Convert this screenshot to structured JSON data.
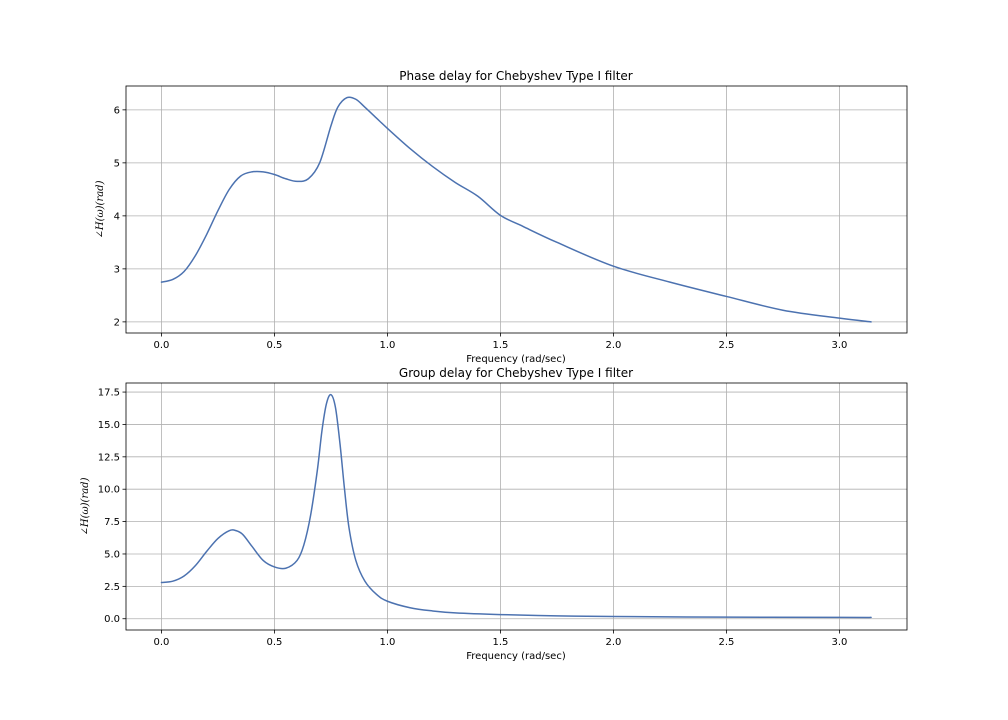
{
  "chart_data": [
    {
      "type": "line",
      "title": "Phase delay for Chebyshev Type I filter",
      "xlabel": "Frequency (rad/sec)",
      "ylabel": "∠H(ω)(rad)",
      "xlim": [
        -0.157,
        3.299
      ],
      "ylim": [
        1.79,
        6.45
      ],
      "xticks": [
        0.0,
        0.5,
        1.0,
        1.5,
        2.0,
        2.5,
        3.0
      ],
      "xtick_labels": [
        "0.0",
        "0.5",
        "1.0",
        "1.5",
        "2.0",
        "2.5",
        "3.0"
      ],
      "yticks": [
        2,
        3,
        4,
        5,
        6
      ],
      "ytick_labels": [
        "2",
        "3",
        "4",
        "5",
        "6"
      ],
      "grid": true,
      "series": [
        {
          "color": "#4c72b0",
          "x": [
            0.0,
            0.05,
            0.1,
            0.15,
            0.2,
            0.25,
            0.3,
            0.35,
            0.4,
            0.45,
            0.5,
            0.55,
            0.6,
            0.65,
            0.7,
            0.75,
            0.78,
            0.82,
            0.86,
            0.9,
            0.95,
            1.0,
            1.1,
            1.2,
            1.3,
            1.4,
            1.5,
            1.6,
            1.75,
            2.0,
            2.25,
            2.5,
            2.75,
            3.0,
            3.14
          ],
          "y": [
            2.75,
            2.8,
            2.95,
            3.25,
            3.65,
            4.1,
            4.5,
            4.75,
            4.83,
            4.83,
            4.78,
            4.7,
            4.65,
            4.7,
            5.0,
            5.7,
            6.05,
            6.23,
            6.2,
            6.05,
            5.85,
            5.65,
            5.27,
            4.93,
            4.63,
            4.37,
            4.01,
            3.8,
            3.5,
            3.05,
            2.75,
            2.48,
            2.22,
            2.07,
            2.0
          ]
        }
      ]
    },
    {
      "type": "line",
      "title": "Group delay for Chebyshev Type I filter",
      "xlabel": "Frequency (rad/sec)",
      "ylabel": "∠H(ω)(rad)",
      "xlim": [
        -0.157,
        3.299
      ],
      "ylim": [
        -0.87,
        18.2
      ],
      "xticks": [
        0.0,
        0.5,
        1.0,
        1.5,
        2.0,
        2.5,
        3.0
      ],
      "xtick_labels": [
        "0.0",
        "0.5",
        "1.0",
        "1.5",
        "2.0",
        "2.5",
        "3.0"
      ],
      "yticks": [
        0.0,
        2.5,
        5.0,
        7.5,
        10.0,
        12.5,
        15.0,
        17.5
      ],
      "ytick_labels": [
        "0.0",
        "2.5",
        "5.0",
        "7.5",
        "10.0",
        "12.5",
        "15.0",
        "17.5"
      ],
      "grid": true,
      "series": [
        {
          "color": "#4c72b0",
          "x": [
            0.0,
            0.05,
            0.1,
            0.15,
            0.2,
            0.25,
            0.3,
            0.33,
            0.36,
            0.4,
            0.45,
            0.5,
            0.55,
            0.6,
            0.63,
            0.66,
            0.69,
            0.71,
            0.73,
            0.75,
            0.77,
            0.79,
            0.81,
            0.83,
            0.86,
            0.9,
            0.95,
            1.0,
            1.1,
            1.2,
            1.3,
            1.5,
            1.75,
            2.0,
            2.5,
            3.0,
            3.14
          ],
          "y": [
            2.8,
            2.9,
            3.3,
            4.1,
            5.2,
            6.2,
            6.8,
            6.8,
            6.5,
            5.6,
            4.5,
            4.0,
            3.9,
            4.5,
            5.7,
            8.0,
            11.5,
            14.5,
            16.6,
            17.3,
            16.3,
            13.5,
            10.0,
            7.0,
            4.5,
            2.9,
            1.9,
            1.35,
            0.85,
            0.6,
            0.45,
            0.32,
            0.22,
            0.17,
            0.12,
            0.1,
            0.1
          ]
        }
      ]
    }
  ]
}
